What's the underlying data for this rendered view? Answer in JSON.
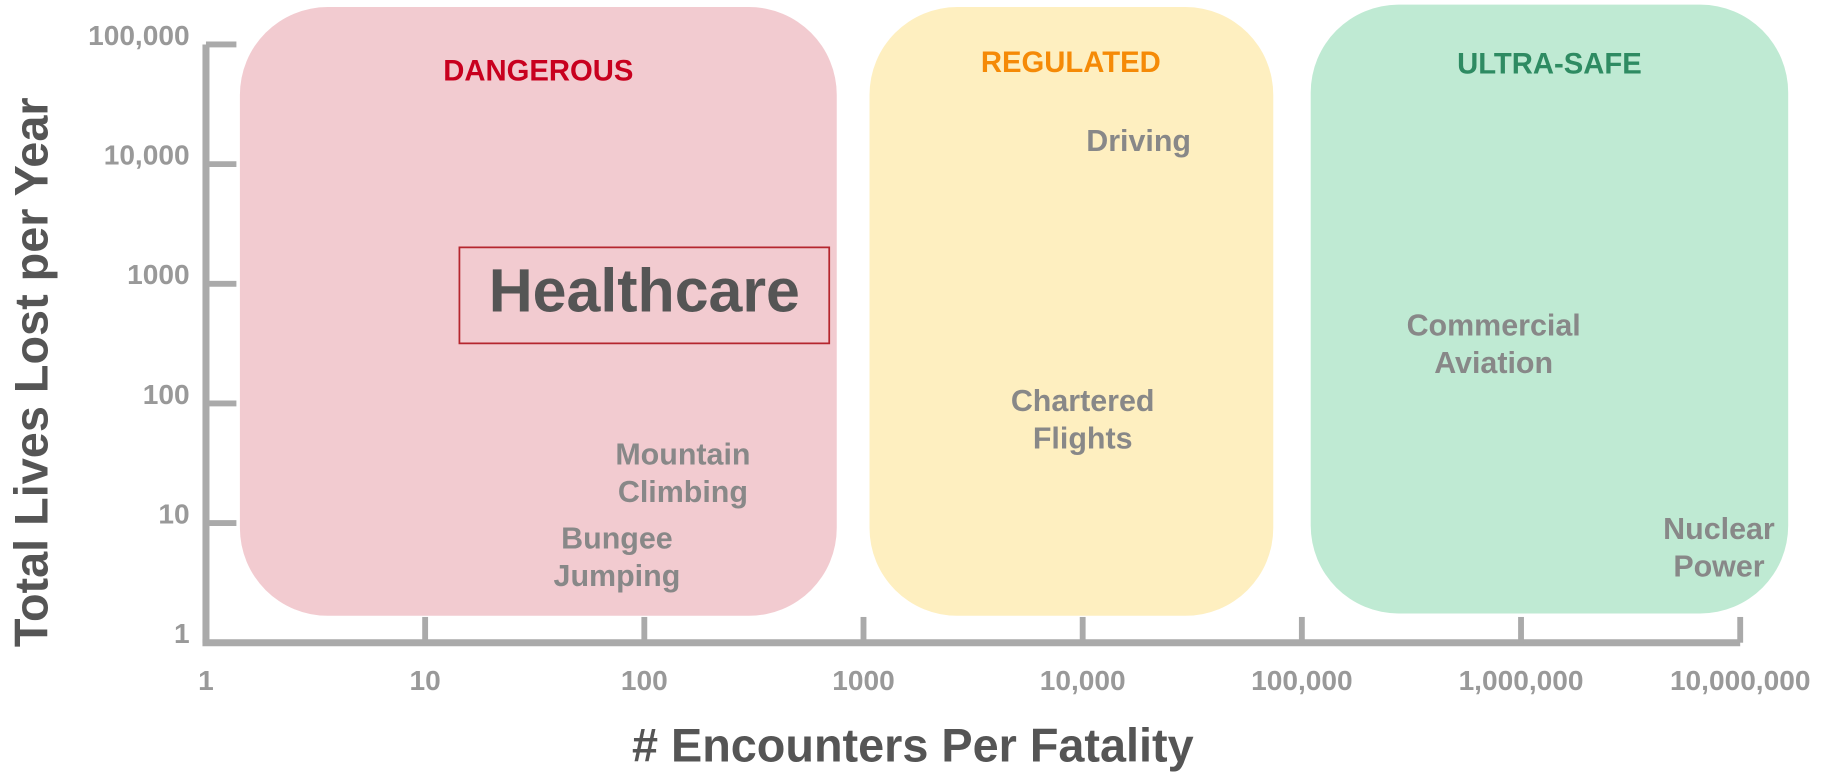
{
  "chart_data": {
    "type": "scatter",
    "x_label": "# Encounters Per Fatality",
    "y_label": "Total Lives Lost per Year",
    "log_x": true,
    "log_y": true,
    "xlim": [
      1,
      10000000
    ],
    "ylim": [
      1,
      100000
    ],
    "xticks": [
      1,
      10,
      100,
      1000,
      {
        "value": 10000,
        "label": "10,000"
      },
      {
        "value": 100000,
        "label": "100,000"
      },
      {
        "value": 1000000,
        "label": "1,000,000"
      },
      {
        "value": 10000000,
        "label": "10,000,000"
      }
    ],
    "yticks": [
      1,
      10,
      100,
      1000,
      {
        "value": 10000,
        "label": "10,000"
      },
      {
        "value": 100000,
        "label": "100,000"
      }
    ],
    "regions": [
      {
        "name": "DANGEROUS",
        "color": "#c8001e",
        "fill": "#f2cbd0"
      },
      {
        "name": "REGULATED",
        "color": "#f58a07",
        "fill": "#feefc0"
      },
      {
        "name": "ULTRA-SAFE",
        "color": "#2e8b62",
        "fill": "#bfead3"
      }
    ],
    "points": [
      {
        "label": "Healthcare",
        "x": 100,
        "y": 800,
        "highlighted": true
      },
      {
        "label": "Mountain Climbing",
        "x": 150,
        "y": 25
      },
      {
        "label": "Bungee Jumping",
        "x": 75,
        "y": 5
      },
      {
        "label": "Driving",
        "x": 18000,
        "y": 15000
      },
      {
        "label": "Chartered Flights",
        "x": 10000,
        "y": 70
      },
      {
        "label": "Commercial Aviation",
        "x": 750000,
        "y": 300
      },
      {
        "label": "Nuclear Power",
        "x": 8000000,
        "y": 6
      }
    ]
  }
}
